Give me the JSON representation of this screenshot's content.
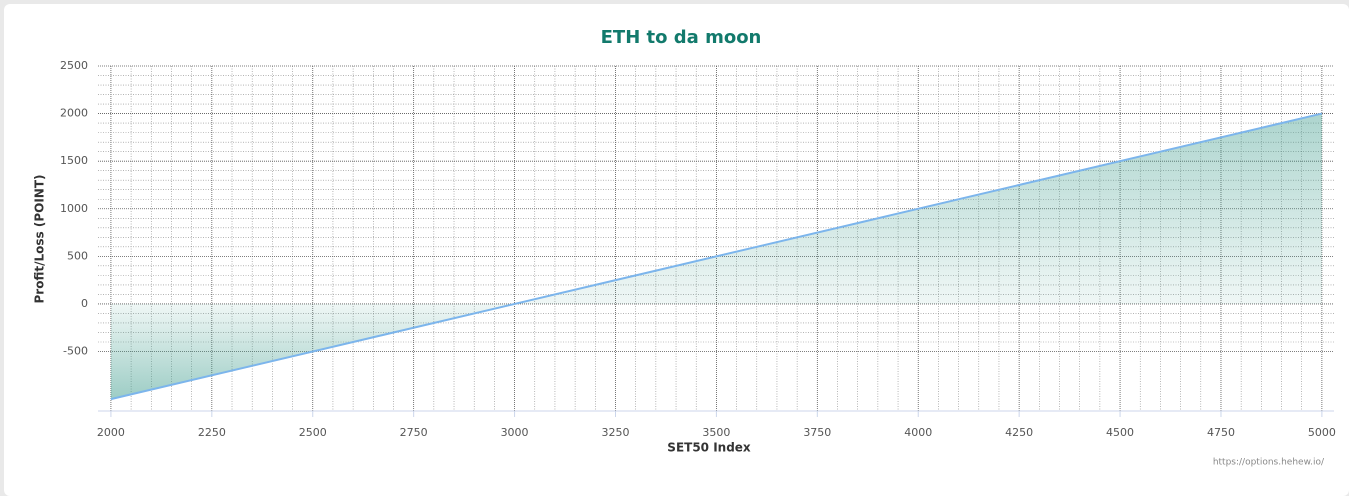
{
  "chart_data": {
    "type": "area",
    "title": "ETH to da moon",
    "x_label": "SET50 Index",
    "y_label": "Profit/Loss (POINT)",
    "credit": "https://options.hehew.io/",
    "x": [
      2000,
      5000
    ],
    "series": [
      {
        "name": "Profit/Loss",
        "color": "#7cb5ec",
        "fill": "#3a9a8a",
        "values": [
          -1000,
          2000
        ]
      }
    ],
    "xlim": [
      1968,
      5030
    ],
    "xticks": [
      2000,
      2250,
      2500,
      2750,
      3000,
      3250,
      3500,
      3750,
      4000,
      4250,
      4500,
      4750,
      5000
    ],
    "ylim": [
      -1125,
      2500
    ],
    "yticks": [
      -500,
      0,
      500,
      1000,
      1500,
      2000,
      2500
    ],
    "grid": true
  }
}
